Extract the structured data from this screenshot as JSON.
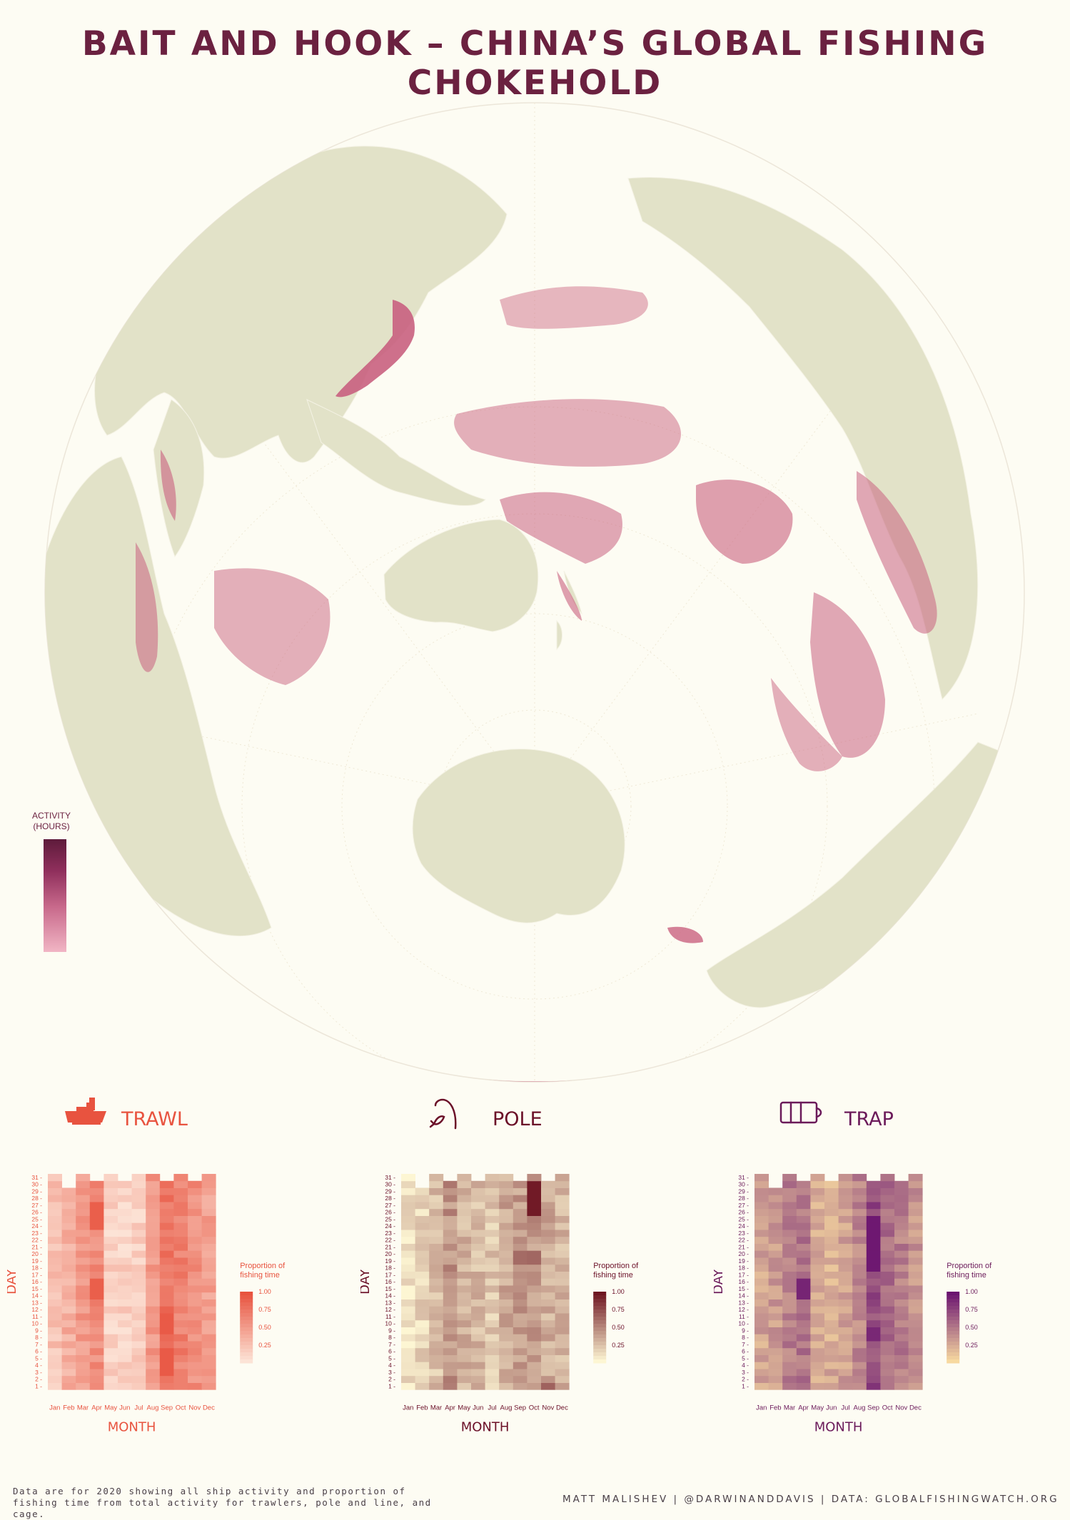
{
  "title": "BAIT AND HOOK – CHINA’S GLOBAL FISHING CHOKEHOLD",
  "colors": {
    "background": "#fdfcf3",
    "land": "#e2e2c8",
    "activity": "#c9617f",
    "title": "#6b2140"
  },
  "map_legend": {
    "title_line1": "ACTIVITY",
    "title_line2": "(HOURS)"
  },
  "chart_data": [
    {
      "type": "heatmap",
      "name": "TRAWL",
      "icon": "trawler-boat-icon",
      "accent": "#e8533f",
      "palette": [
        "#fce3d6",
        "#e8533f"
      ],
      "xlabel": "MONTH",
      "ylabel": "DAY",
      "legend_title": [
        "Proportion of",
        "fishing time"
      ],
      "legend_ticks": [
        "1.00",
        "0.75",
        "0.50",
        "0.25"
      ],
      "x": [
        "Jan",
        "Feb",
        "Mar",
        "Apr",
        "May",
        "Jun",
        "Jul",
        "Aug",
        "Sep",
        "Oct",
        "Nov",
        "Dec"
      ],
      "y": [
        "1",
        "2",
        "3",
        "4",
        "5",
        "6",
        "7",
        "8",
        "9",
        "10",
        "11",
        "12",
        "13",
        "14",
        "15",
        "16",
        "17",
        "18",
        "19",
        "20",
        "21",
        "22",
        "23",
        "24",
        "25",
        "26",
        "27",
        "28",
        "29",
        "30",
        "31"
      ],
      "month_base": [
        0.22,
        0.36,
        0.5,
        0.6,
        0.12,
        0.12,
        0.13,
        0.52,
        0.76,
        0.68,
        0.58,
        0.46
      ],
      "hotspots": [
        {
          "month": "Apr",
          "days": [
            14,
            15,
            16,
            24,
            25,
            26,
            27
          ],
          "value": 0.92
        },
        {
          "month": "Sep",
          "days": [
            3,
            4,
            5,
            6,
            9,
            10,
            11
          ],
          "value": 0.95
        }
      ],
      "missing_days": {
        "Feb": [
          30,
          31
        ],
        "Apr": [
          31
        ],
        "Jun": [
          31
        ],
        "Sep": [
          31
        ],
        "Nov": [
          31
        ]
      }
    },
    {
      "type": "heatmap",
      "name": "POLE",
      "icon": "fishing-pole-icon",
      "accent": "#6b1028",
      "palette": [
        "#fdf6d3",
        "#6e1622"
      ],
      "xlabel": "MONTH",
      "ylabel": "DAY",
      "legend_title": [
        "Proportion of",
        "fishing time"
      ],
      "legend_ticks": [
        "1.00",
        "0.75",
        "0.50",
        "0.25"
      ],
      "x": [
        "Jan",
        "Feb",
        "Mar",
        "Apr",
        "May",
        "Jun",
        "Jul",
        "Aug",
        "Sep",
        "Oct",
        "Nov",
        "Dec"
      ],
      "y": [
        "1",
        "2",
        "3",
        "4",
        "5",
        "6",
        "7",
        "8",
        "9",
        "10",
        "11",
        "12",
        "13",
        "14",
        "15",
        "16",
        "17",
        "18",
        "19",
        "20",
        "21",
        "22",
        "23",
        "24",
        "25",
        "26",
        "27",
        "28",
        "29",
        "30",
        "31"
      ],
      "month_base": [
        0.08,
        0.14,
        0.24,
        0.44,
        0.3,
        0.27,
        0.22,
        0.35,
        0.4,
        0.42,
        0.33,
        0.3
      ],
      "hotspots": [
        {
          "month": "Oct",
          "days": [
            26,
            27,
            28,
            29,
            30
          ],
          "value": 0.98
        },
        {
          "month": "Sep",
          "days": [
            19,
            20
          ],
          "value": 0.62
        },
        {
          "month": "Oct",
          "days": [
            19,
            20
          ],
          "value": 0.64
        },
        {
          "month": "Nov",
          "days": [
            1
          ],
          "value": 0.66
        }
      ],
      "missing_days": {
        "Feb": [
          30,
          31
        ],
        "Apr": [
          31
        ],
        "Jun": [
          31
        ],
        "Sep": [
          31
        ],
        "Nov": [
          31
        ]
      }
    },
    {
      "type": "heatmap",
      "name": "TRAP",
      "icon": "trap-cage-icon",
      "accent": "#6b1a5a",
      "palette": [
        "#f7d9a0",
        "#6b1470"
      ],
      "xlabel": "MONTH",
      "ylabel": "DAY",
      "legend_title": [
        "Proportion of",
        "fishing time"
      ],
      "legend_ticks": [
        "1.00",
        "0.75",
        "0.50",
        "0.25"
      ],
      "x": [
        "Jan",
        "Feb",
        "Mar",
        "Apr",
        "May",
        "Jun",
        "Jul",
        "Aug",
        "Sep",
        "Oct",
        "Nov",
        "Dec"
      ],
      "y": [
        "1",
        "2",
        "3",
        "4",
        "5",
        "6",
        "7",
        "8",
        "9",
        "10",
        "11",
        "12",
        "13",
        "14",
        "15",
        "16",
        "17",
        "18",
        "19",
        "20",
        "21",
        "22",
        "23",
        "24",
        "25",
        "26",
        "27",
        "28",
        "29",
        "30",
        "31"
      ],
      "month_base": [
        0.26,
        0.3,
        0.46,
        0.52,
        0.24,
        0.22,
        0.28,
        0.42,
        0.72,
        0.56,
        0.46,
        0.34
      ],
      "hotspots": [
        {
          "month": "Sep",
          "days": [
            18,
            19,
            20,
            21,
            22,
            23,
            24,
            25
          ],
          "value": 0.98
        },
        {
          "month": "Apr",
          "days": [
            14,
            15,
            16
          ],
          "value": 0.92
        },
        {
          "month": "Sep",
          "days": [
            8,
            9
          ],
          "value": 0.9
        }
      ],
      "missing_days": {
        "Feb": [
          30,
          31
        ],
        "Apr": [
          31
        ],
        "Jun": [
          31
        ],
        "Sep": [
          31
        ],
        "Nov": [
          31
        ]
      }
    }
  ],
  "footnote_line1": "Data are for 2020 showing all ship activity and proportion of",
  "footnote_line2": "fishing time from total activity for trawlers, pole and line, and cage.",
  "credit": "MATT MALISHEV | @DARWINANDDAVIS | DATA: GLOBALFISHINGWATCH.ORG"
}
